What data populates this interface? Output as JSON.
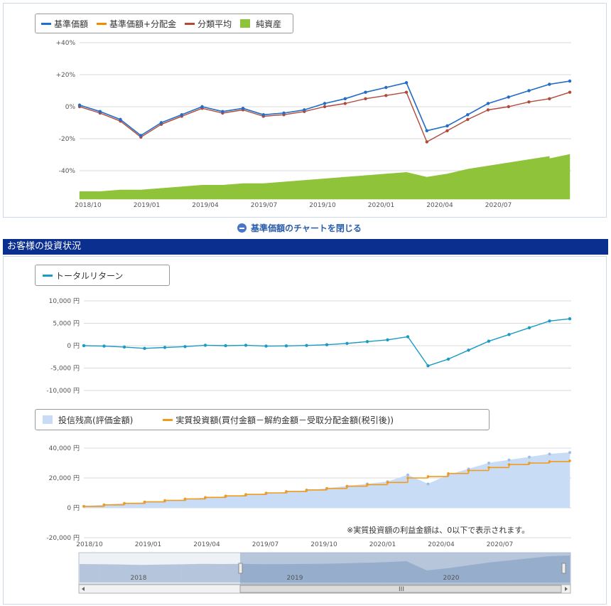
{
  "top_chart": {
    "legend": [
      {
        "name": "基準価額",
        "color": "#1f6fd1",
        "style": "line"
      },
      {
        "name": "基準価額+分配金",
        "color": "#f08c00",
        "style": "line"
      },
      {
        "name": "分類平均",
        "color": "#b04a3a",
        "style": "line"
      },
      {
        "name": "純資産",
        "color": "#8fc43a",
        "style": "box"
      }
    ],
    "y_ticks": [
      "+40%",
      "+20%",
      "0%",
      "-20%",
      "-40%"
    ],
    "x_ticks": [
      "2018/10",
      "2019/01",
      "2019/04",
      "2019/07",
      "2019/10",
      "2020/01",
      "2020/04",
      "2020/07"
    ]
  },
  "close_link": "基準価額のチャートを閉じる",
  "section_title": "お客様の投資状況",
  "return_chart": {
    "legend": [
      {
        "name": "トータルリターン",
        "color": "#1a9bc4"
      }
    ],
    "y_ticks": [
      "10,000 円",
      "5,000 円",
      "0 円",
      "-5,000 円",
      "-10,000 円"
    ]
  },
  "balance_chart": {
    "legend": [
      {
        "name": "投信残高(評価金額)",
        "color": "#c9dcf5"
      },
      {
        "name": "実質投資額(買付金額－解約金額－受取分配金額(税引後))",
        "color": "#f29a1c"
      }
    ],
    "y_ticks": [
      "40,000 円",
      "20,000 円",
      "0 円",
      "-20,000 円"
    ],
    "x_ticks": [
      "2018/10",
      "2019/01",
      "2019/04",
      "2019/07",
      "2019/10",
      "2020/01",
      "2020/04",
      "2020/07"
    ],
    "footnote": "※実質投資額の利益金額は、0以下で表示されます。"
  },
  "navigator": {
    "labels": [
      "2018",
      "2019",
      "2020"
    ],
    "scroll_label": "III"
  },
  "chart_data": [
    {
      "type": "line",
      "x": [
        "2018/10",
        "2018/11",
        "2018/12",
        "2019/01",
        "2019/02",
        "2019/03",
        "2019/04",
        "2019/05",
        "2019/06",
        "2019/07",
        "2019/08",
        "2019/09",
        "2019/10",
        "2019/11",
        "2019/12",
        "2020/01",
        "2020/02",
        "2020/03",
        "2020/04",
        "2020/05",
        "2020/06",
        "2020/07",
        "2020/08",
        "2020/09",
        "2020/10"
      ],
      "series": [
        {
          "name": "基準価額",
          "values": [
            1,
            -3,
            -8,
            -18,
            -10,
            -5,
            0,
            -3,
            -1,
            -5,
            -4,
            -2,
            2,
            5,
            9,
            12,
            15,
            -15,
            -12,
            -5,
            2,
            6,
            10,
            14,
            16
          ]
        },
        {
          "name": "基準価額+分配金",
          "values": [
            1,
            -3,
            -8,
            -18,
            -10,
            -5,
            0,
            -3,
            -1,
            -5,
            -4,
            -2,
            2,
            5,
            9,
            12,
            15,
            -15,
            -12,
            -5,
            2,
            6,
            10,
            14,
            16
          ]
        },
        {
          "name": "分類平均",
          "values": [
            0,
            -4,
            -9,
            -19,
            -11,
            -6,
            -1,
            -4,
            -2,
            -6,
            -5,
            -3,
            0,
            2,
            5,
            7,
            9,
            -22,
            -15,
            -8,
            -2,
            0,
            3,
            5,
            9
          ]
        },
        {
          "name": "純資産",
          "values": [
            -53,
            -53,
            -52,
            -52,
            -51,
            -50,
            -49,
            -49,
            -48,
            -48,
            -47,
            -46,
            -45,
            -44,
            -43,
            -42,
            -41,
            -44,
            -42,
            -39,
            -37,
            -35,
            -33,
            -31,
            -28
          ]
        }
      ],
      "ylim": [
        -50,
        40
      ]
    },
    {
      "type": "line",
      "x": [
        "2018/10",
        "2018/11",
        "2018/12",
        "2019/01",
        "2019/02",
        "2019/03",
        "2019/04",
        "2019/05",
        "2019/06",
        "2019/07",
        "2019/08",
        "2019/09",
        "2019/10",
        "2019/11",
        "2019/12",
        "2020/01",
        "2020/02",
        "2020/03",
        "2020/04",
        "2020/05",
        "2020/06",
        "2020/07",
        "2020/08",
        "2020/09",
        "2020/10"
      ],
      "series": [
        {
          "name": "トータルリターン",
          "values": [
            0,
            -100,
            -300,
            -600,
            -400,
            -200,
            100,
            0,
            100,
            -100,
            -50,
            50,
            200,
            500,
            900,
            1300,
            2000,
            -4500,
            -3000,
            -1000,
            1000,
            2500,
            4000,
            5500,
            6000
          ]
        }
      ],
      "ylim": [
        -10000,
        10000
      ]
    },
    {
      "type": "area",
      "x": [
        "2018/10",
        "2018/11",
        "2018/12",
        "2019/01",
        "2019/02",
        "2019/03",
        "2019/04",
        "2019/05",
        "2019/06",
        "2019/07",
        "2019/08",
        "2019/09",
        "2019/10",
        "2019/11",
        "2019/12",
        "2020/01",
        "2020/02",
        "2020/03",
        "2020/04",
        "2020/05",
        "2020/06",
        "2020/07",
        "2020/08",
        "2020/09",
        "2020/10"
      ],
      "series": [
        {
          "name": "投信残高(評価金額)",
          "values": [
            1000,
            2000,
            3000,
            3500,
            4500,
            5500,
            6800,
            7500,
            8500,
            9500,
            10500,
            11500,
            13000,
            14500,
            16000,
            17500,
            22000,
            16000,
            22000,
            26000,
            30000,
            32000,
            34000,
            36000,
            37000
          ]
        },
        {
          "name": "実質投資額(買付金額－解約金額－受取分配金額(税引後))",
          "values": [
            1000,
            2000,
            3000,
            4000,
            5000,
            6000,
            7000,
            8000,
            9000,
            10000,
            11000,
            12000,
            13000,
            14500,
            15500,
            17000,
            20000,
            21000,
            23000,
            25000,
            27000,
            29000,
            30000,
            31000,
            31500
          ]
        }
      ],
      "ylim": [
        -20000,
        40000
      ]
    }
  ]
}
